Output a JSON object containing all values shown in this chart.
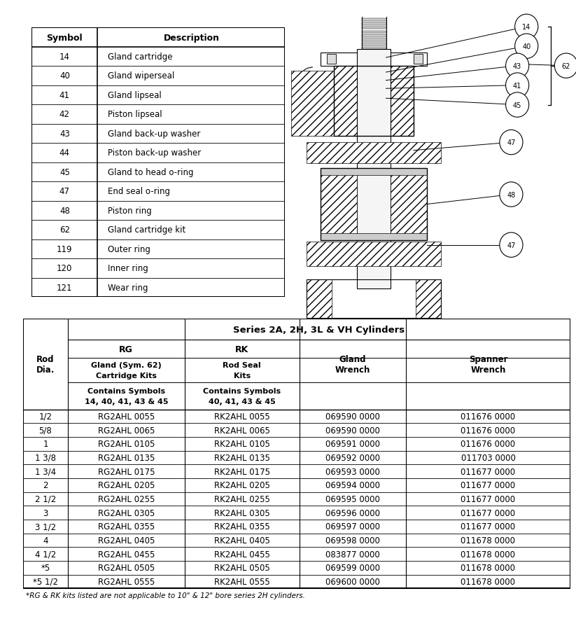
{
  "symbol_table": {
    "headers": [
      "Symbol",
      "Description"
    ],
    "rows": [
      [
        "14",
        "Gland cartridge"
      ],
      [
        "40",
        "Gland wiperseal"
      ],
      [
        "41",
        "Gland lipseal"
      ],
      [
        "42",
        "Piston lipseal"
      ],
      [
        "43",
        "Gland back-up washer"
      ],
      [
        "44",
        "Piston back-up washer"
      ],
      [
        "45",
        "Gland to head o-ring"
      ],
      [
        "47",
        "End seal o-ring"
      ],
      [
        "48",
        "Piston ring"
      ],
      [
        "62",
        "Gland cartridge kit"
      ],
      [
        "119",
        "Outer ring"
      ],
      [
        "120",
        "Inner ring"
      ],
      [
        "121",
        "Wear ring"
      ]
    ]
  },
  "main_table": {
    "title": "Series 2A, 2H, 3L & VH Cylinders",
    "rows": [
      [
        "1/2",
        "RG2AHL 0055",
        "RK2AHL 0055",
        "069590 0000",
        "011676 0000"
      ],
      [
        "5/8",
        "RG2AHL 0065",
        "RK2AHL 0065",
        "069590 0000",
        "011676 0000"
      ],
      [
        "1",
        "RG2AHL 0105",
        "RK2AHL 0105",
        "069591 0000",
        "011676 0000"
      ],
      [
        "1 3/8",
        "RG2AHL 0135",
        "RK2AHL 0135",
        "069592 0000",
        "011703 0000"
      ],
      [
        "1 3/4",
        "RG2AHL 0175",
        "RK2AHL 0175",
        "069593 0000",
        "011677 0000"
      ],
      [
        "2",
        "RG2AHL 0205",
        "RK2AHL 0205",
        "069594 0000",
        "011677 0000"
      ],
      [
        "2 1/2",
        "RG2AHL 0255",
        "RK2AHL 0255",
        "069595 0000",
        "011677 0000"
      ],
      [
        "3",
        "RG2AHL 0305",
        "RK2AHL 0305",
        "069596 0000",
        "011677 0000"
      ],
      [
        "3 1/2",
        "RG2AHL 0355",
        "RK2AHL 0355",
        "069597 0000",
        "011677 0000"
      ],
      [
        "4",
        "RG2AHL 0405",
        "RK2AHL 0405",
        "069598 0000",
        "011678 0000"
      ],
      [
        "4 1/2",
        "RG2AHL 0455",
        "RK2AHL 0455",
        "083877 0000",
        "011678 0000"
      ],
      [
        "*5",
        "RG2AHL 0505",
        "RK2AHL 0505",
        "069599 0000",
        "011678 0000"
      ],
      [
        "*5 1/2",
        "RG2AHL 0555",
        "RK2AHL 0555",
        "069600 0000",
        "011678 0000"
      ]
    ],
    "footnote": "*RG & RK kits listed are not applicable to 10\" & 12\" bore series 2H cylinders."
  },
  "background_color": "#ffffff"
}
